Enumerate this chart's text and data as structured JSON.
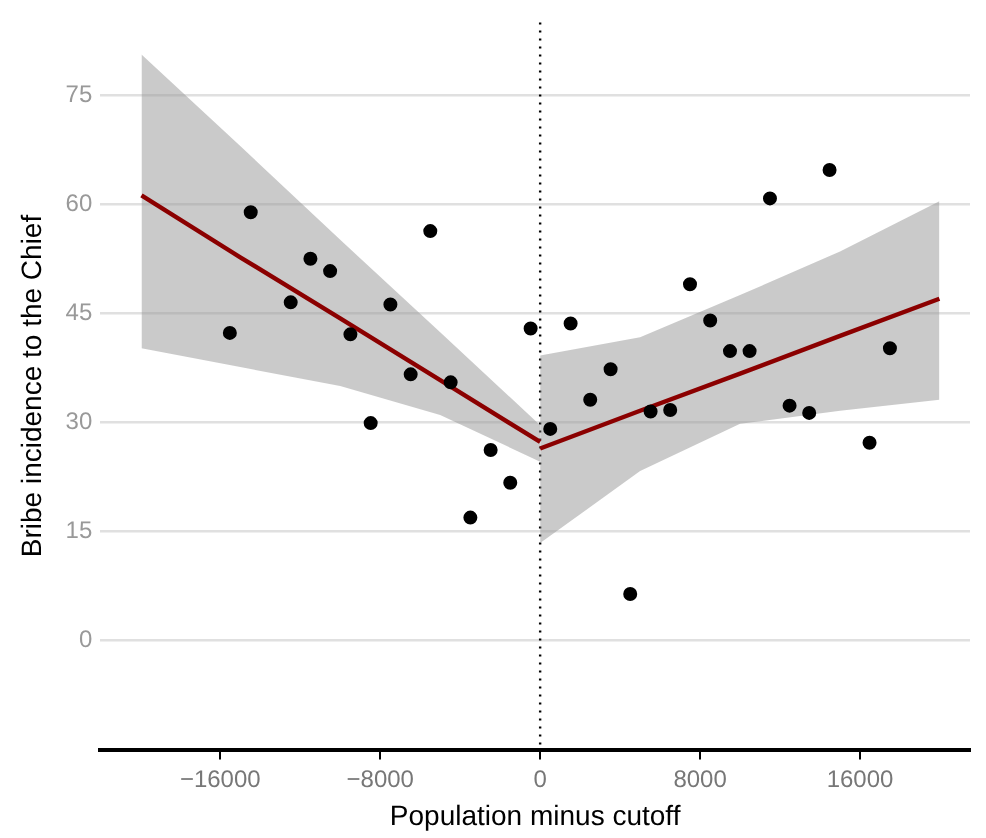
{
  "chart_data": {
    "type": "scatter",
    "xlabel": "Population minus cutoff",
    "ylabel": "Bribe incidence to the Chief",
    "xlim": [
      -22000,
      21500
    ],
    "xticks": [
      {
        "value": -16000,
        "label": "−16000"
      },
      {
        "value": -8000,
        "label": "−8000"
      },
      0,
      8000,
      16000
    ],
    "ylim": [
      -15,
      85
    ],
    "yticks": [
      0,
      15,
      30,
      45,
      60,
      75
    ],
    "grid": "y",
    "legend": false,
    "ref_lines": [
      {
        "axis": "x",
        "value": 0,
        "color": "#000000",
        "line_style": "dotted"
      }
    ],
    "series": [
      {
        "type": "line",
        "color": "#8b0000",
        "x": [
          -19940,
          -15000,
          -10000,
          -5000,
          0
        ],
        "values": [
          61.2,
          52.7,
          44.3,
          35.8,
          27.3
        ],
        "lower": [
          40.2,
          37.6,
          35.0,
          31.0,
          24.6
        ],
        "upper": [
          80.6,
          68.0,
          55.1,
          42.4,
          29.6
        ]
      },
      {
        "type": "line",
        "color": "#8b0000",
        "x": [
          0,
          5000,
          10000,
          15000,
          19970
        ],
        "values": [
          26.4,
          31.6,
          36.7,
          41.9,
          47.0
        ],
        "lower": [
          13.4,
          23.3,
          29.8,
          31.6,
          33.1
        ],
        "upper": [
          39.2,
          41.7,
          47.5,
          53.5,
          60.4
        ]
      },
      {
        "type": "scatter",
        "color": "#000000",
        "marker": "circle",
        "x": [
          -15520,
          -14476,
          -12476,
          -11490,
          -10505,
          -9490,
          -8476,
          -7490,
          -6476,
          -5495,
          -4476,
          -3490,
          -2476,
          -1495,
          -476,
          505,
          1524,
          2505,
          3524,
          4505,
          5524,
          6505,
          7495,
          8505,
          9495,
          10476,
          11495,
          12476,
          13457,
          14476,
          16476,
          17495
        ],
        "values": [
          42.3,
          58.9,
          46.5,
          52.5,
          50.8,
          42.1,
          29.9,
          46.2,
          36.6,
          56.3,
          35.5,
          16.9,
          26.2,
          21.7,
          42.9,
          29.1,
          43.6,
          33.1,
          37.3,
          6.4,
          31.5,
          31.7,
          49.0,
          44.0,
          39.8,
          39.8,
          60.8,
          32.3,
          31.3,
          64.7,
          27.2,
          40.2
        ]
      }
    ]
  }
}
